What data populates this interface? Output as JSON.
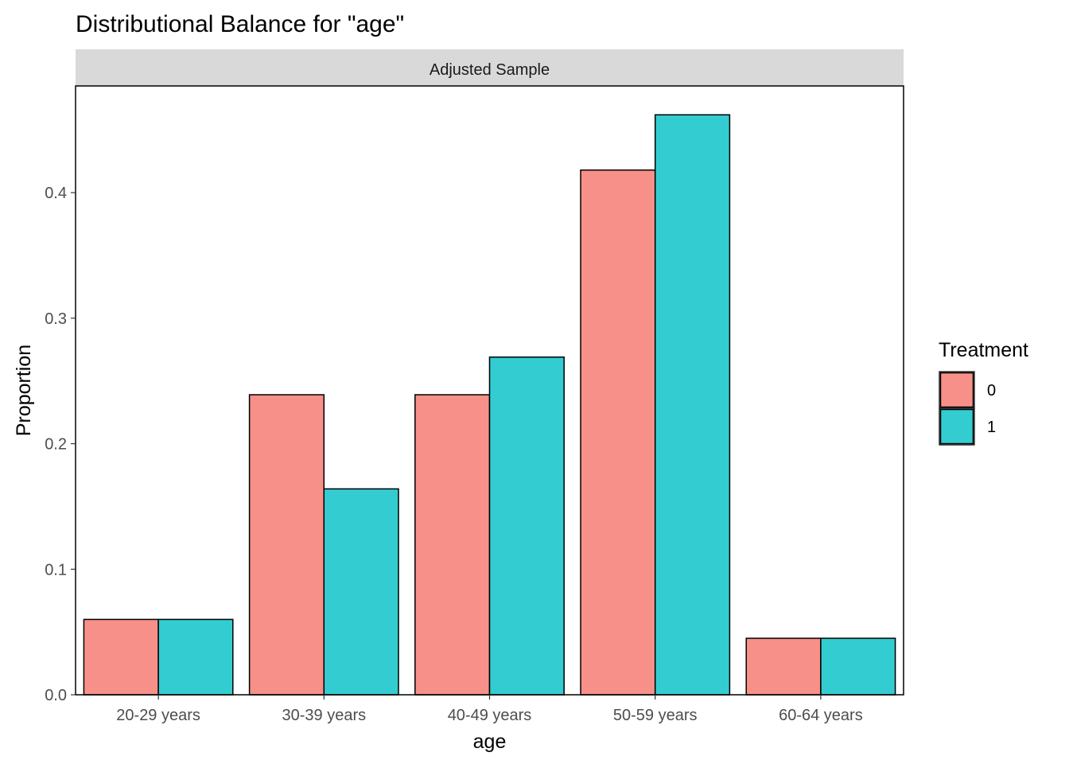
{
  "chart_data": {
    "type": "bar",
    "title": "Distributional Balance for \"age\"",
    "facet_label": "Adjusted Sample",
    "xlabel": "age",
    "ylabel": "Proportion",
    "categories": [
      "20-29 years",
      "30-39 years",
      "40-49 years",
      "50-59 years",
      "60-64 years"
    ],
    "ylim": [
      0,
      0.485
    ],
    "yticks": [
      0.0,
      0.1,
      0.2,
      0.3,
      0.4
    ],
    "ytick_labels": [
      "0.0",
      "0.1",
      "0.2",
      "0.3",
      "0.4"
    ],
    "grid": false,
    "legend": {
      "title": "Treatment",
      "position": "right"
    },
    "series": [
      {
        "name": "0",
        "color": "#F8908A",
        "values": [
          0.06,
          0.239,
          0.239,
          0.418,
          0.045
        ]
      },
      {
        "name": "1",
        "color": "#33CCD1",
        "values": [
          0.06,
          0.164,
          0.269,
          0.462,
          0.045
        ]
      }
    ],
    "strip_color": "#D9D9D9",
    "bar_outline_color": "#000000"
  }
}
